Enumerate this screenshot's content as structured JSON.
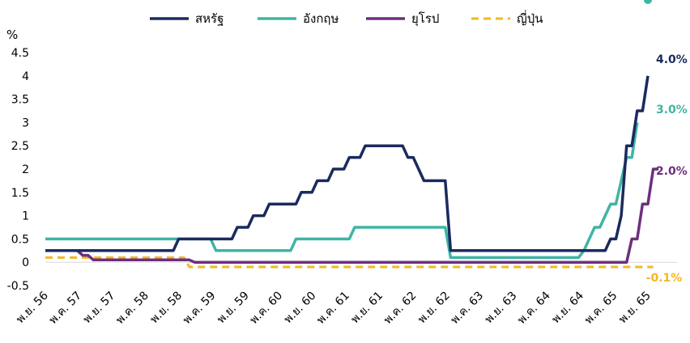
{
  "chart_data": {
    "type": "line",
    "unit_label": "%",
    "ylim": [
      -0.5,
      4.5
    ],
    "y_ticks": [
      "-0.5",
      "0",
      "0.5",
      "1",
      "1.5",
      "2",
      "2.5",
      "3",
      "3.5",
      "4",
      "4.5"
    ],
    "x_ticks": [
      "พ.ย. 56",
      "พ.ค. 57",
      "พ.ย. 57",
      "พ.ค. 58",
      "พ.ย. 58",
      "พ.ค. 59",
      "พ.ย. 59",
      "พ.ค. 60",
      "พ.ย. 60",
      "พ.ค. 61",
      "พ.ย. 61",
      "พ.ค. 62",
      "พ.ย. 62",
      "พ.ค. 63",
      "พ.ย. 63",
      "พ.ค. 64",
      "พ.ย. 64",
      "พ.ค. 65",
      "พ.ย. 65"
    ],
    "grid": false,
    "legend_position": "top",
    "series": [
      {
        "name": "สหรัฐ",
        "color": "#1b2a5e",
        "dash": false,
        "end_label": "4.0%",
        "end_marker": false,
        "values": [
          0.25,
          0.25,
          0.25,
          0.25,
          0.25,
          0.25,
          0.25,
          0.25,
          0.25,
          0.25,
          0.25,
          0.25,
          0.25,
          0.25,
          0.25,
          0.25,
          0.25,
          0.25,
          0.25,
          0.25,
          0.25,
          0.25,
          0.25,
          0.25,
          0.25,
          0.5,
          0.5,
          0.5,
          0.5,
          0.5,
          0.5,
          0.5,
          0.5,
          0.5,
          0.5,
          0.5,
          0.75,
          0.75,
          0.75,
          1,
          1,
          1,
          1.25,
          1.25,
          1.25,
          1.25,
          1.25,
          1.25,
          1.5,
          1.5,
          1.5,
          1.75,
          1.75,
          1.75,
          2,
          2,
          2,
          2.25,
          2.25,
          2.25,
          2.5,
          2.5,
          2.5,
          2.5,
          2.5,
          2.5,
          2.5,
          2.5,
          2.25,
          2.25,
          2,
          1.75,
          1.75,
          1.75,
          1.75,
          1.75,
          0.25,
          0.25,
          0.25,
          0.25,
          0.25,
          0.25,
          0.25,
          0.25,
          0.25,
          0.25,
          0.25,
          0.25,
          0.25,
          0.25,
          0.25,
          0.25,
          0.25,
          0.25,
          0.25,
          0.25,
          0.25,
          0.25,
          0.25,
          0.25,
          0.25,
          0.25,
          0.25,
          0.25,
          0.25,
          0.25,
          0.5,
          0.5,
          1,
          2.5,
          2.5,
          3.25,
          3.25,
          4
        ]
      },
      {
        "name": "อังกฤษ",
        "color": "#3fb5a3",
        "dash": false,
        "end_label": "3.0%",
        "end_marker": true,
        "values": [
          0.5,
          0.5,
          0.5,
          0.5,
          0.5,
          0.5,
          0.5,
          0.5,
          0.5,
          0.5,
          0.5,
          0.5,
          0.5,
          0.5,
          0.5,
          0.5,
          0.5,
          0.5,
          0.5,
          0.5,
          0.5,
          0.5,
          0.5,
          0.5,
          0.5,
          0.5,
          0.5,
          0.5,
          0.5,
          0.5,
          0.5,
          0.5,
          0.25,
          0.25,
          0.25,
          0.25,
          0.25,
          0.25,
          0.25,
          0.25,
          0.25,
          0.25,
          0.25,
          0.25,
          0.25,
          0.25,
          0.25,
          0.5,
          0.5,
          0.5,
          0.5,
          0.5,
          0.5,
          0.5,
          0.5,
          0.5,
          0.5,
          0.5,
          0.75,
          0.75,
          0.75,
          0.75,
          0.75,
          0.75,
          0.75,
          0.75,
          0.75,
          0.75,
          0.75,
          0.75,
          0.75,
          0.75,
          0.75,
          0.75,
          0.75,
          0.75,
          0.1,
          0.1,
          0.1,
          0.1,
          0.1,
          0.1,
          0.1,
          0.1,
          0.1,
          0.1,
          0.1,
          0.1,
          0.1,
          0.1,
          0.1,
          0.1,
          0.1,
          0.1,
          0.1,
          0.1,
          0.1,
          0.1,
          0.1,
          0.1,
          0.1,
          0.25,
          0.5,
          0.75,
          0.75,
          1,
          1.25,
          1.25,
          1.75,
          2.25,
          2.25,
          3
        ]
      },
      {
        "name": "ยุโรป",
        "color": "#6e2f7e",
        "dash": false,
        "end_label": "2.0%",
        "end_marker": false,
        "values": [
          0.25,
          0.25,
          0.25,
          0.25,
          0.25,
          0.25,
          0.25,
          0.15,
          0.15,
          0.05,
          0.05,
          0.05,
          0.05,
          0.05,
          0.05,
          0.05,
          0.05,
          0.05,
          0.05,
          0.05,
          0.05,
          0.05,
          0.05,
          0.05,
          0.05,
          0.05,
          0.05,
          0.05,
          0,
          0,
          0,
          0,
          0,
          0,
          0,
          0,
          0,
          0,
          0,
          0,
          0,
          0,
          0,
          0,
          0,
          0,
          0,
          0,
          0,
          0,
          0,
          0,
          0,
          0,
          0,
          0,
          0,
          0,
          0,
          0,
          0,
          0,
          0,
          0,
          0,
          0,
          0,
          0,
          0,
          0,
          0,
          0,
          0,
          0,
          0,
          0,
          0,
          0,
          0,
          0,
          0,
          0,
          0,
          0,
          0,
          0,
          0,
          0,
          0,
          0,
          0,
          0,
          0,
          0,
          0,
          0,
          0,
          0,
          0,
          0,
          0,
          0,
          0,
          0,
          0,
          0,
          0,
          0,
          0,
          0,
          0.5,
          0.5,
          1.25,
          1.25,
          2,
          2
        ]
      },
      {
        "name": "ญี่ปุ่น",
        "color": "#f2b824",
        "dash": true,
        "end_label": "-0.1%",
        "end_marker": false,
        "values": [
          0.1,
          0.1,
          0.1,
          0.1,
          0.1,
          0.1,
          0.1,
          0.1,
          0.1,
          0.1,
          0.1,
          0.1,
          0.1,
          0.1,
          0.1,
          0.1,
          0.1,
          0.1,
          0.1,
          0.1,
          0.1,
          0.1,
          0.1,
          0.1,
          0.1,
          0.1,
          0.1,
          -0.1,
          -0.1,
          -0.1,
          -0.1,
          -0.1,
          -0.1,
          -0.1,
          -0.1,
          -0.1,
          -0.1,
          -0.1,
          -0.1,
          -0.1,
          -0.1,
          -0.1,
          -0.1,
          -0.1,
          -0.1,
          -0.1,
          -0.1,
          -0.1,
          -0.1,
          -0.1,
          -0.1,
          -0.1,
          -0.1,
          -0.1,
          -0.1,
          -0.1,
          -0.1,
          -0.1,
          -0.1,
          -0.1,
          -0.1,
          -0.1,
          -0.1,
          -0.1,
          -0.1,
          -0.1,
          -0.1,
          -0.1,
          -0.1,
          -0.1,
          -0.1,
          -0.1,
          -0.1,
          -0.1,
          -0.1,
          -0.1,
          -0.1,
          -0.1,
          -0.1,
          -0.1,
          -0.1,
          -0.1,
          -0.1,
          -0.1,
          -0.1,
          -0.1,
          -0.1,
          -0.1,
          -0.1,
          -0.1,
          -0.1,
          -0.1,
          -0.1,
          -0.1,
          -0.1,
          -0.1,
          -0.1,
          -0.1,
          -0.1,
          -0.1,
          -0.1,
          -0.1,
          -0.1,
          -0.1,
          -0.1,
          -0.1,
          -0.1,
          -0.1,
          -0.1,
          -0.1,
          -0.1,
          -0.1,
          -0.1,
          -0.1,
          -0.1
        ]
      }
    ]
  }
}
